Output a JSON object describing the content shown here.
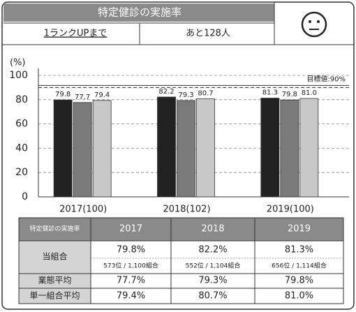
{
  "header": {
    "title": "特定健診の実施率",
    "rank_label": "1ランクUPまで",
    "rank_value": "あと128人"
  },
  "chart_data": {
    "type": "bar",
    "ylabel": "(%)",
    "categories": [
      "2017(100)",
      "2018(102)",
      "2019(100)"
    ],
    "series": [
      {
        "name": "当組合",
        "color": "#222222",
        "values": [
          79.8,
          82.2,
          81.3
        ]
      },
      {
        "name": "業態平均",
        "color": "#7a7a7a",
        "values": [
          77.7,
          79.3,
          79.8
        ]
      },
      {
        "name": "単一組合平均",
        "color": "#c8c8c8",
        "values": [
          79.4,
          80.7,
          81.0
        ],
        "value_labels": [
          "79.4",
          "80.7",
          "81.0"
        ]
      }
    ],
    "ylim": [
      0,
      100
    ],
    "yticks": [
      0,
      20,
      40,
      60,
      80,
      100
    ],
    "grid": true,
    "annotation": {
      "text": "目標値:90%",
      "value": 90
    }
  },
  "table": {
    "header": [
      "特定健診の実施率",
      "2017",
      "2018",
      "2019"
    ],
    "rows": [
      [
        "79.8%",
        "82.2%",
        "81.3%"
      ],
      [
        "77.7%",
        "79.3%",
        "79.8%"
      ],
      [
        "79.4%",
        "80.7%",
        "81.0%"
      ]
    ],
    "ranks": [
      "573位 / 1,100組合",
      "552位 / 1,104組合",
      "656位 / 1,114組合"
    ]
  }
}
